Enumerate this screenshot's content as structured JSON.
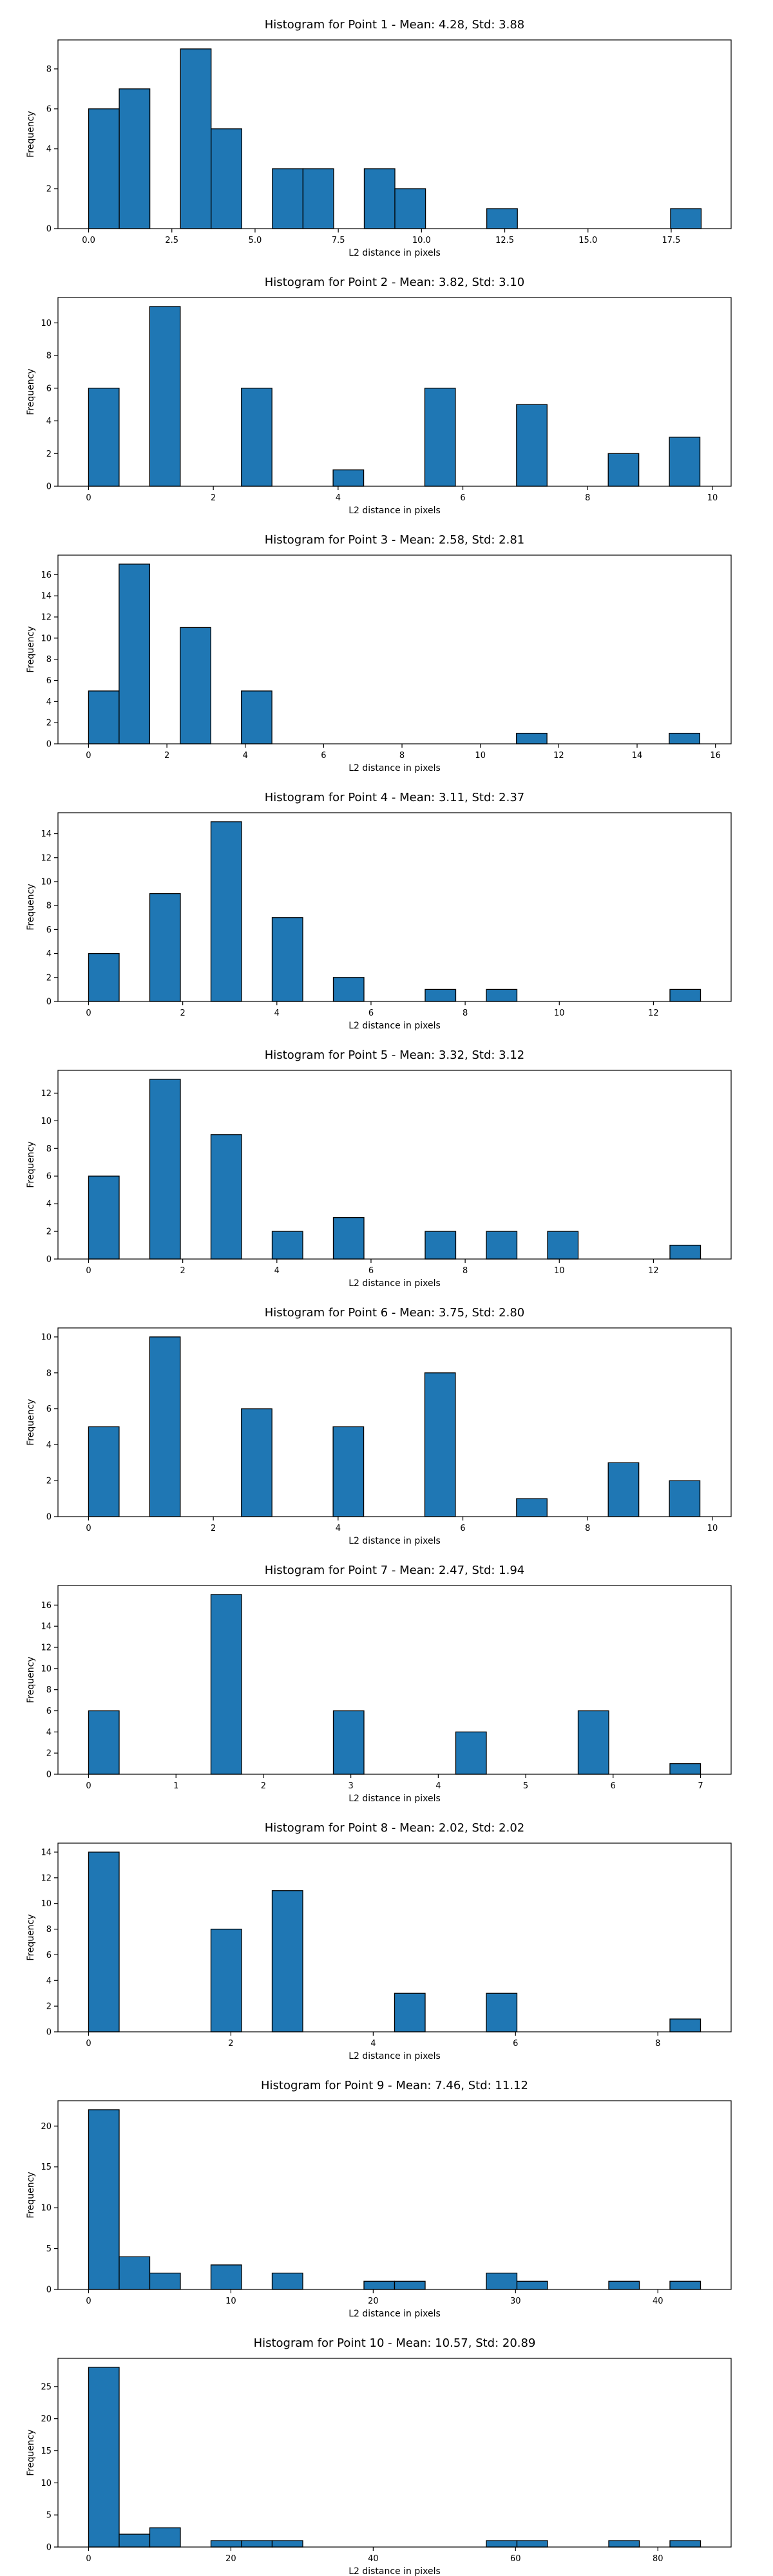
{
  "style": {
    "bar_color": "#1f77b4",
    "edge_color": "#000000"
  },
  "chart_data": [
    {
      "type": "bar",
      "title": "Histogram for Point 1 - Mean: 4.28, Std: 3.88",
      "xlabel": "L2 distance in pixels",
      "ylabel": "Frequency",
      "xlim": [
        -0.92,
        19.3
      ],
      "ylim": [
        0,
        9.45
      ],
      "xticks": [
        0.0,
        2.5,
        5.0,
        7.5,
        10.0,
        12.5,
        15.0,
        17.5
      ],
      "xtick_labels": [
        "0.0",
        "2.5",
        "5.0",
        "7.5",
        "10.0",
        "12.5",
        "15.0",
        "17.5"
      ],
      "yticks": [
        0,
        2,
        4,
        6,
        8
      ],
      "bin_width": 0.92,
      "bins": [
        {
          "x": 0.0,
          "count": 6
        },
        {
          "x": 0.92,
          "count": 7
        },
        {
          "x": 2.76,
          "count": 9
        },
        {
          "x": 3.68,
          "count": 5
        },
        {
          "x": 5.52,
          "count": 3
        },
        {
          "x": 6.44,
          "count": 3
        },
        {
          "x": 8.28,
          "count": 3
        },
        {
          "x": 9.2,
          "count": 2
        },
        {
          "x": 11.96,
          "count": 1
        },
        {
          "x": 17.48,
          "count": 1
        }
      ]
    },
    {
      "type": "bar",
      "title": "Histogram for Point 2 - Mean: 3.82, Std: 3.10",
      "xlabel": "L2 distance in pixels",
      "ylabel": "Frequency",
      "xlim": [
        -0.49,
        10.3
      ],
      "ylim": [
        0,
        11.55
      ],
      "xticks": [
        0,
        2,
        4,
        6,
        8,
        10
      ],
      "xtick_labels": [
        "0",
        "2",
        "4",
        "6",
        "8",
        "10"
      ],
      "yticks": [
        0,
        2,
        4,
        6,
        8,
        10
      ],
      "bin_width": 0.49,
      "bins": [
        {
          "x": 0.0,
          "count": 6
        },
        {
          "x": 0.98,
          "count": 11
        },
        {
          "x": 2.45,
          "count": 6
        },
        {
          "x": 3.92,
          "count": 1
        },
        {
          "x": 5.39,
          "count": 6
        },
        {
          "x": 6.86,
          "count": 5
        },
        {
          "x": 8.33,
          "count": 2
        },
        {
          "x": 9.31,
          "count": 3
        }
      ]
    },
    {
      "type": "bar",
      "title": "Histogram for Point 3 - Mean: 2.58, Std: 2.81",
      "xlabel": "L2 distance in pixels",
      "ylabel": "Frequency",
      "xlim": [
        -0.78,
        16.4
      ],
      "ylim": [
        0,
        17.85
      ],
      "xticks": [
        0,
        2,
        4,
        6,
        8,
        10,
        12,
        14,
        16
      ],
      "xtick_labels": [
        "0",
        "2",
        "4",
        "6",
        "8",
        "10",
        "12",
        "14",
        "16"
      ],
      "yticks": [
        0,
        2,
        4,
        6,
        8,
        10,
        12,
        14,
        16
      ],
      "bin_width": 0.78,
      "bins": [
        {
          "x": 0.0,
          "count": 5
        },
        {
          "x": 0.78,
          "count": 17
        },
        {
          "x": 2.34,
          "count": 11
        },
        {
          "x": 3.9,
          "count": 5
        },
        {
          "x": 10.92,
          "count": 1
        },
        {
          "x": 14.82,
          "count": 1
        }
      ]
    },
    {
      "type": "bar",
      "title": "Histogram for Point 4 - Mean: 3.11, Std: 2.37",
      "xlabel": "L2 distance in pixels",
      "ylabel": "Frequency",
      "xlim": [
        -0.65,
        13.65
      ],
      "ylim": [
        0,
        15.75
      ],
      "xticks": [
        0,
        2,
        4,
        6,
        8,
        10,
        12
      ],
      "xtick_labels": [
        "0",
        "2",
        "4",
        "6",
        "8",
        "10",
        "12"
      ],
      "yticks": [
        0,
        2,
        4,
        6,
        8,
        10,
        12,
        14
      ],
      "bin_width": 0.65,
      "bins": [
        {
          "x": 0.0,
          "count": 4
        },
        {
          "x": 1.3,
          "count": 9
        },
        {
          "x": 2.6,
          "count": 15
        },
        {
          "x": 3.9,
          "count": 7
        },
        {
          "x": 5.2,
          "count": 2
        },
        {
          "x": 7.15,
          "count": 1
        },
        {
          "x": 8.45,
          "count": 1
        },
        {
          "x": 12.35,
          "count": 1
        }
      ]
    },
    {
      "type": "bar",
      "title": "Histogram for Point 5 - Mean: 3.32, Std: 3.12",
      "xlabel": "L2 distance in pixels",
      "ylabel": "Frequency",
      "xlim": [
        -0.65,
        13.65
      ],
      "ylim": [
        0,
        13.65
      ],
      "xticks": [
        0,
        2,
        4,
        6,
        8,
        10,
        12
      ],
      "xtick_labels": [
        "0",
        "2",
        "4",
        "6",
        "8",
        "10",
        "12"
      ],
      "yticks": [
        0,
        2,
        4,
        6,
        8,
        10,
        12
      ],
      "bin_width": 0.65,
      "bins": [
        {
          "x": 0.0,
          "count": 6
        },
        {
          "x": 1.3,
          "count": 13
        },
        {
          "x": 2.6,
          "count": 9
        },
        {
          "x": 3.9,
          "count": 2
        },
        {
          "x": 5.2,
          "count": 3
        },
        {
          "x": 7.15,
          "count": 2
        },
        {
          "x": 8.45,
          "count": 2
        },
        {
          "x": 9.75,
          "count": 2
        },
        {
          "x": 12.35,
          "count": 1
        }
      ]
    },
    {
      "type": "bar",
      "title": "Histogram for Point 6 - Mean: 3.75, Std: 2.80",
      "xlabel": "L2 distance in pixels",
      "ylabel": "Frequency",
      "xlim": [
        -0.49,
        10.3
      ],
      "ylim": [
        0,
        10.5
      ],
      "xticks": [
        0,
        2,
        4,
        6,
        8,
        10
      ],
      "xtick_labels": [
        "0",
        "2",
        "4",
        "6",
        "8",
        "10"
      ],
      "yticks": [
        0,
        2,
        4,
        6,
        8,
        10
      ],
      "bin_width": 0.49,
      "bins": [
        {
          "x": 0.0,
          "count": 5
        },
        {
          "x": 0.98,
          "count": 10
        },
        {
          "x": 2.45,
          "count": 6
        },
        {
          "x": 3.92,
          "count": 5
        },
        {
          "x": 5.39,
          "count": 8
        },
        {
          "x": 6.86,
          "count": 1
        },
        {
          "x": 8.33,
          "count": 3
        },
        {
          "x": 9.31,
          "count": 2
        }
      ]
    },
    {
      "type": "bar",
      "title": "Histogram for Point 7 - Mean: 2.47, Std: 1.94",
      "xlabel": "L2 distance in pixels",
      "ylabel": "Frequency",
      "xlim": [
        -0.35,
        7.35
      ],
      "ylim": [
        0,
        17.85
      ],
      "xticks": [
        0,
        1,
        2,
        3,
        4,
        5,
        6,
        7
      ],
      "xtick_labels": [
        "0",
        "1",
        "2",
        "3",
        "4",
        "5",
        "6",
        "7"
      ],
      "yticks": [
        0,
        2,
        4,
        6,
        8,
        10,
        12,
        14,
        16
      ],
      "bin_width": 0.35,
      "bins": [
        {
          "x": 0.0,
          "count": 6
        },
        {
          "x": 1.4,
          "count": 17
        },
        {
          "x": 2.8,
          "count": 6
        },
        {
          "x": 4.2,
          "count": 4
        },
        {
          "x": 5.6,
          "count": 6
        },
        {
          "x": 6.65,
          "count": 1
        }
      ]
    },
    {
      "type": "bar",
      "title": "Histogram for Point 8 - Mean: 2.02, Std: 2.02",
      "xlabel": "L2 distance in pixels",
      "ylabel": "Frequency",
      "xlim": [
        -0.43,
        9.03
      ],
      "ylim": [
        0,
        14.7
      ],
      "xticks": [
        0,
        2,
        4,
        6,
        8
      ],
      "xtick_labels": [
        "0",
        "2",
        "4",
        "6",
        "8"
      ],
      "yticks": [
        0,
        2,
        4,
        6,
        8,
        10,
        12,
        14
      ],
      "bin_width": 0.43,
      "bins": [
        {
          "x": 0.0,
          "count": 14
        },
        {
          "x": 1.72,
          "count": 8
        },
        {
          "x": 2.58,
          "count": 11
        },
        {
          "x": 4.3,
          "count": 3
        },
        {
          "x": 5.59,
          "count": 3
        },
        {
          "x": 8.17,
          "count": 1
        }
      ]
    },
    {
      "type": "bar",
      "title": "Histogram for Point 9 - Mean: 7.46, Std: 11.12",
      "xlabel": "L2 distance in pixels",
      "ylabel": "Frequency",
      "xlim": [
        -2.15,
        45.15
      ],
      "ylim": [
        0,
        23.1
      ],
      "xticks": [
        0,
        10,
        20,
        30,
        40
      ],
      "xtick_labels": [
        "0",
        "10",
        "20",
        "30",
        "40"
      ],
      "yticks": [
        0,
        5,
        10,
        15,
        20
      ],
      "bin_width": 2.15,
      "bins": [
        {
          "x": 0.0,
          "count": 22
        },
        {
          "x": 2.15,
          "count": 4
        },
        {
          "x": 4.3,
          "count": 2
        },
        {
          "x": 8.6,
          "count": 3
        },
        {
          "x": 12.9,
          "count": 2
        },
        {
          "x": 19.35,
          "count": 1
        },
        {
          "x": 21.5,
          "count": 1
        },
        {
          "x": 27.95,
          "count": 2
        },
        {
          "x": 30.1,
          "count": 1
        },
        {
          "x": 36.55,
          "count": 1
        },
        {
          "x": 40.85,
          "count": 1
        }
      ]
    },
    {
      "type": "bar",
      "title": "Histogram for Point 10 - Mean: 10.57, Std: 20.89",
      "xlabel": "L2 distance in pixels",
      "ylabel": "Frequency",
      "xlim": [
        -4.3,
        90.3
      ],
      "ylim": [
        0,
        29.4
      ],
      "xticks": [
        0,
        20,
        40,
        60,
        80
      ],
      "xtick_labels": [
        "0",
        "20",
        "40",
        "60",
        "80"
      ],
      "yticks": [
        0,
        5,
        10,
        15,
        20,
        25
      ],
      "bin_width": 4.3,
      "bins": [
        {
          "x": 0.0,
          "count": 28
        },
        {
          "x": 4.3,
          "count": 2
        },
        {
          "x": 8.6,
          "count": 3
        },
        {
          "x": 17.2,
          "count": 1
        },
        {
          "x": 21.5,
          "count": 1
        },
        {
          "x": 25.8,
          "count": 1
        },
        {
          "x": 55.9,
          "count": 1
        },
        {
          "x": 60.2,
          "count": 1
        },
        {
          "x": 73.1,
          "count": 1
        },
        {
          "x": 81.7,
          "count": 1
        }
      ]
    }
  ]
}
